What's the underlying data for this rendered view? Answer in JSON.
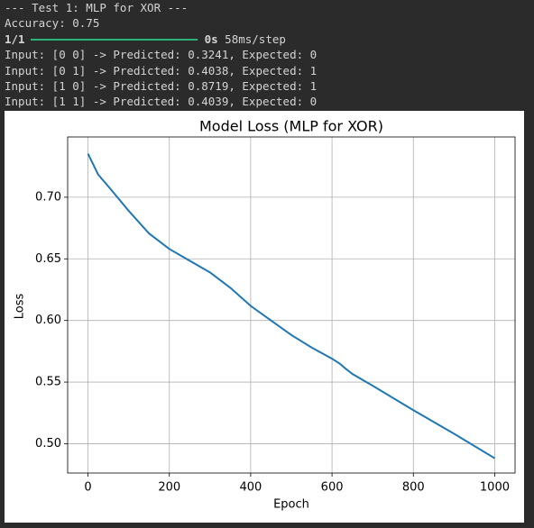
{
  "console": {
    "lines_top": [
      "--- Test 1: MLP for XOR ---",
      "Accuracy: 0.75"
    ],
    "progress": {
      "count": "1/1",
      "time": "0s",
      "rate": "58ms/step"
    },
    "lines_bottom": [
      "Input: [0 0] -> Predicted: 0.3241, Expected: 0",
      "Input: [0 1] -> Predicted: 0.4038, Expected: 1",
      "Input: [1 0] -> Predicted: 0.8719, Expected: 1",
      "Input: [1 1] -> Predicted: 0.4039, Expected: 0"
    ]
  },
  "chart_data": {
    "type": "line",
    "title": "Model Loss (MLP for XOR)",
    "x_label": "Epoch",
    "y_label": "Loss",
    "x": [
      0,
      25,
      50,
      100,
      150,
      200,
      250,
      300,
      350,
      400,
      450,
      500,
      550,
      600,
      620,
      630,
      650,
      700,
      800,
      900,
      1000
    ],
    "values": [
      0.7353,
      0.7184,
      0.7088,
      0.689,
      0.6706,
      0.658,
      0.6485,
      0.639,
      0.6265,
      0.6118,
      0.6,
      0.5882,
      0.578,
      0.569,
      0.5647,
      0.5618,
      0.5566,
      0.547,
      0.5272,
      0.5081,
      0.4882
    ],
    "color": "#1f77b4",
    "xlim": [
      -50,
      1050
    ],
    "xticks": [
      0,
      200,
      400,
      600,
      800,
      1000
    ],
    "ylim": [
      0.4762,
      0.7489
    ],
    "yticks": [
      {
        "value": 0.5,
        "label": "0.50"
      },
      0.55,
      {
        "value": 0.6,
        "label": "0.60"
      },
      0.65,
      {
        "value": 0.7,
        "label": "0.70"
      }
    ],
    "grid": true
  }
}
